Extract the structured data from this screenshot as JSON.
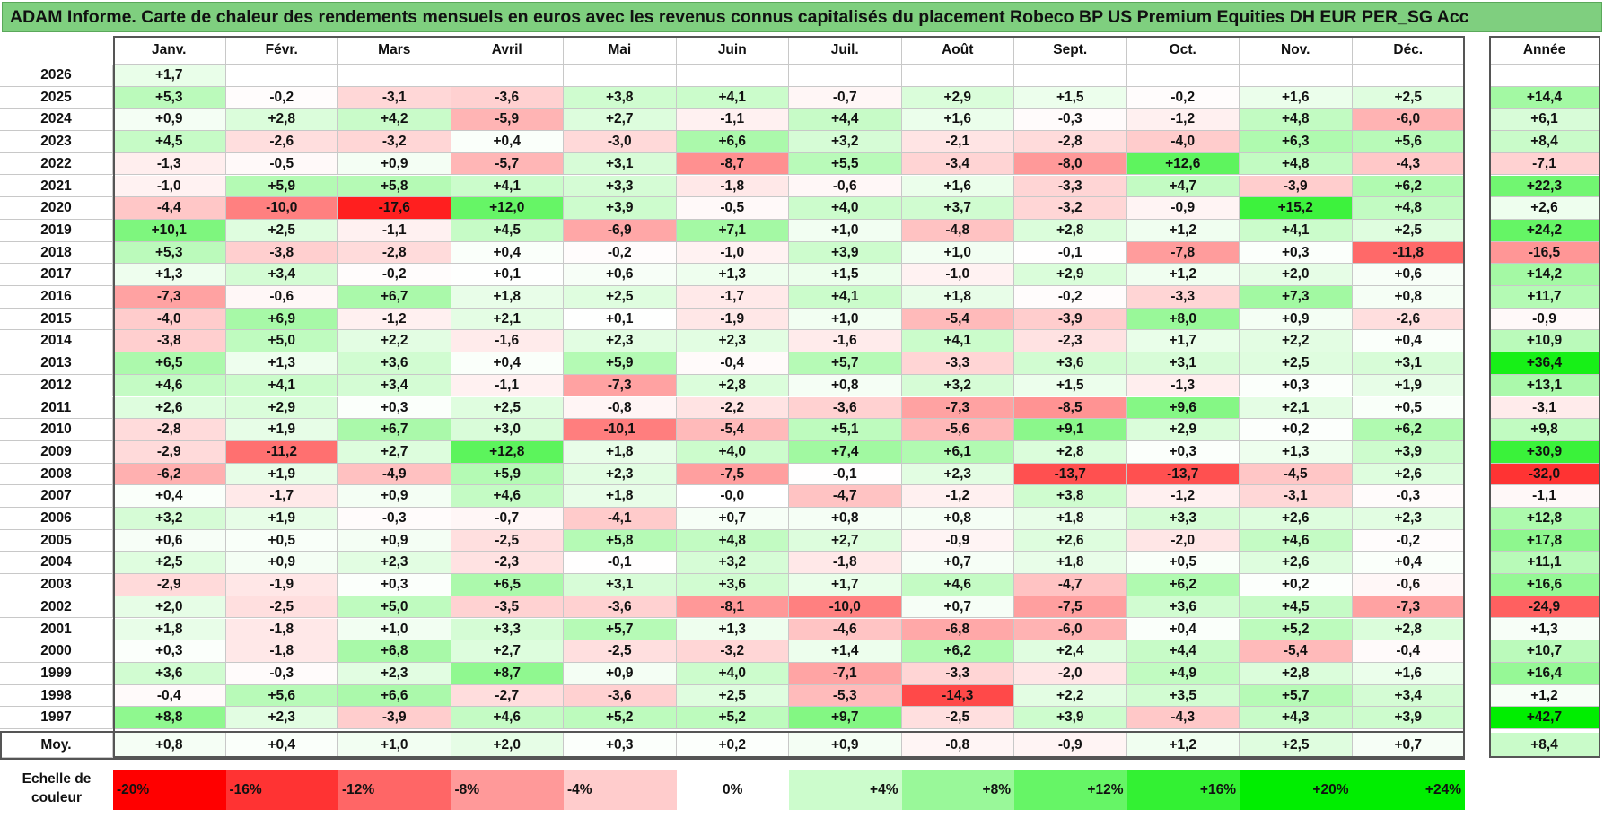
{
  "title": "ADAM Informe. Carte de chaleur des rendements mensuels en euros avec les revenus connus capitalisés du placement Robeco BP US Premium Equities DH EUR PER_SG Acc",
  "colors": {
    "title_bg": "#7fcf7f",
    "negative_max": "#ff0000",
    "neutral": "#ffffff",
    "positive_max": "#00ee00"
  },
  "chart_data": {
    "type": "heatmap",
    "months": [
      "Janv.",
      "Févr.",
      "Mars",
      "Avril",
      "Mai",
      "Juin",
      "Juil.",
      "Août",
      "Sept.",
      "Oct.",
      "Nov.",
      "Déc."
    ],
    "year_header": "Année",
    "years": [
      "2026",
      "2025",
      "2024",
      "2023",
      "2022",
      "2021",
      "2020",
      "2019",
      "2018",
      "2017",
      "2016",
      "2015",
      "2014",
      "2013",
      "2012",
      "2011",
      "2010",
      "2009",
      "2008",
      "2007",
      "2006",
      "2005",
      "2004",
      "2003",
      "2002",
      "2001",
      "2000",
      "1999",
      "1998",
      "1997"
    ],
    "monthly": [
      [
        "+1,7",
        "",
        "",
        "",
        "",
        "",
        "",
        "",
        "",
        "",
        "",
        ""
      ],
      [
        "+5,3",
        "-0,2",
        "-3,1",
        "-3,6",
        "+3,8",
        "+4,1",
        "-0,7",
        "+2,9",
        "+1,5",
        "-0,2",
        "+1,6",
        "+2,5"
      ],
      [
        "+0,9",
        "+2,8",
        "+4,2",
        "-5,9",
        "+2,7",
        "-1,1",
        "+4,4",
        "+1,6",
        "-0,3",
        "-1,2",
        "+4,8",
        "-6,0"
      ],
      [
        "+4,5",
        "-2,6",
        "-3,2",
        "+0,4",
        "-3,0",
        "+6,6",
        "+3,2",
        "-2,1",
        "-2,8",
        "-4,0",
        "+6,3",
        "+5,6"
      ],
      [
        "-1,3",
        "-0,5",
        "+0,9",
        "-5,7",
        "+3,1",
        "-8,7",
        "+5,5",
        "-3,4",
        "-8,0",
        "+12,6",
        "+4,8",
        "-4,3"
      ],
      [
        "-1,0",
        "+5,9",
        "+5,8",
        "+4,1",
        "+3,3",
        "-1,8",
        "-0,6",
        "+1,6",
        "-3,3",
        "+4,7",
        "-3,9",
        "+6,2"
      ],
      [
        "-4,4",
        "-10,0",
        "-17,6",
        "+12,0",
        "+3,9",
        "-0,5",
        "+4,0",
        "+3,7",
        "-3,2",
        "-0,9",
        "+15,2",
        "+4,8"
      ],
      [
        "+10,1",
        "+2,5",
        "-1,1",
        "+4,5",
        "-6,9",
        "+7,1",
        "+1,0",
        "-4,8",
        "+2,8",
        "+1,2",
        "+4,1",
        "+2,5"
      ],
      [
        "+5,3",
        "-3,8",
        "-2,8",
        "+0,4",
        "-0,2",
        "-1,0",
        "+3,9",
        "+1,0",
        "-0,1",
        "-7,8",
        "+0,3",
        "-11,8"
      ],
      [
        "+1,3",
        "+3,4",
        "-0,2",
        "+0,1",
        "+0,6",
        "+1,3",
        "+1,5",
        "-1,0",
        "+2,9",
        "+1,2",
        "+2,0",
        "+0,6"
      ],
      [
        "-7,3",
        "-0,6",
        "+6,7",
        "+1,8",
        "+2,5",
        "-1,7",
        "+4,1",
        "+1,8",
        "-0,2",
        "-3,3",
        "+7,3",
        "+0,8"
      ],
      [
        "-4,0",
        "+6,9",
        "-1,2",
        "+2,1",
        "+0,1",
        "-1,9",
        "+1,0",
        "-5,4",
        "-3,9",
        "+8,0",
        "+0,9",
        "-2,6"
      ],
      [
        "-3,8",
        "+5,0",
        "+2,2",
        "-1,6",
        "+2,3",
        "+2,3",
        "-1,6",
        "+4,1",
        "-2,3",
        "+1,7",
        "+2,2",
        "+0,4"
      ],
      [
        "+6,5",
        "+1,3",
        "+3,6",
        "+0,4",
        "+5,9",
        "-0,4",
        "+5,7",
        "-3,3",
        "+3,6",
        "+3,1",
        "+2,5",
        "+3,1"
      ],
      [
        "+4,6",
        "+4,1",
        "+3,4",
        "-1,1",
        "-7,3",
        "+2,8",
        "+0,8",
        "+3,2",
        "+1,5",
        "-1,3",
        "+0,3",
        "+1,9"
      ],
      [
        "+2,6",
        "+2,9",
        "+0,3",
        "+2,5",
        "-0,8",
        "-2,2",
        "-3,6",
        "-7,3",
        "-8,5",
        "+9,6",
        "+2,1",
        "+0,5"
      ],
      [
        "-2,8",
        "+1,9",
        "+6,7",
        "+3,0",
        "-10,1",
        "-5,4",
        "+5,1",
        "-5,6",
        "+9,1",
        "+2,9",
        "+0,2",
        "+6,2"
      ],
      [
        "-2,9",
        "-11,2",
        "+2,7",
        "+12,8",
        "+1,8",
        "+4,0",
        "+7,4",
        "+6,1",
        "+2,8",
        "+0,3",
        "+1,3",
        "+3,9"
      ],
      [
        "-6,2",
        "+1,9",
        "-4,9",
        "+5,9",
        "+2,3",
        "-7,5",
        "-0,1",
        "+2,3",
        "-13,7",
        "-13,7",
        "-4,5",
        "+2,6"
      ],
      [
        "+0,4",
        "-1,7",
        "+0,9",
        "+4,6",
        "+1,8",
        "-0,0",
        "-4,7",
        "-1,2",
        "+3,8",
        "-1,2",
        "-3,1",
        "-0,3"
      ],
      [
        "+3,2",
        "+1,9",
        "-0,3",
        "-0,7",
        "-4,1",
        "+0,7",
        "+0,8",
        "+0,8",
        "+1,8",
        "+3,3",
        "+2,6",
        "+2,3"
      ],
      [
        "+0,6",
        "+0,5",
        "+0,9",
        "-2,5",
        "+5,8",
        "+4,8",
        "+2,7",
        "-0,9",
        "+2,6",
        "-2,0",
        "+4,6",
        "-0,2"
      ],
      [
        "+2,5",
        "+0,9",
        "+2,3",
        "-2,3",
        "-0,1",
        "+3,2",
        "-1,8",
        "+0,7",
        "+1,8",
        "+0,5",
        "+2,6",
        "+0,4"
      ],
      [
        "-2,9",
        "-1,9",
        "+0,3",
        "+6,5",
        "+3,1",
        "+3,6",
        "+1,7",
        "+4,6",
        "-4,7",
        "+6,2",
        "+0,2",
        "-0,6"
      ],
      [
        "+2,0",
        "-2,5",
        "+5,0",
        "-3,5",
        "-3,6",
        "-8,1",
        "-10,0",
        "+0,7",
        "-7,5",
        "+3,6",
        "+4,5",
        "-7,3"
      ],
      [
        "+1,8",
        "-1,8",
        "+1,0",
        "+3,3",
        "+5,7",
        "+1,3",
        "-4,6",
        "-6,8",
        "-6,0",
        "+0,4",
        "+5,2",
        "+2,8"
      ],
      [
        "+0,3",
        "-1,8",
        "+6,8",
        "+2,7",
        "-2,5",
        "-3,2",
        "+1,4",
        "+6,2",
        "+2,4",
        "+4,4",
        "-5,4",
        "-0,4"
      ],
      [
        "+3,6",
        "-0,3",
        "+2,3",
        "+8,7",
        "+0,9",
        "+4,0",
        "-7,1",
        "-3,3",
        "-2,0",
        "+4,9",
        "+2,8",
        "+1,6"
      ],
      [
        "-0,4",
        "+5,6",
        "+6,6",
        "-2,7",
        "-3,6",
        "+2,5",
        "-5,3",
        "-14,3",
        "+2,2",
        "+3,5",
        "+5,7",
        "+3,4"
      ],
      [
        "+8,8",
        "+2,3",
        "-3,9",
        "+4,6",
        "+5,2",
        "+5,2",
        "+9,7",
        "-2,5",
        "+3,9",
        "-4,3",
        "+4,3",
        "+3,9"
      ]
    ],
    "annual": [
      "",
      "+14,4",
      "+6,1",
      "+8,4",
      "-7,1",
      "+22,3",
      "+2,6",
      "+24,2",
      "-16,5",
      "+14,2",
      "+11,7",
      "-0,9",
      "+10,9",
      "+36,4",
      "+13,1",
      "-3,1",
      "+9,8",
      "+30,9",
      "-32,0",
      "-1,1",
      "+12,8",
      "+17,8",
      "+11,1",
      "+16,6",
      "-24,9",
      "+1,3",
      "+10,7",
      "+16,4",
      "+1,2",
      "+42,7"
    ],
    "average_label": "Moy.",
    "average_monthly": [
      "+0,8",
      "+0,4",
      "+1,0",
      "+2,0",
      "+0,3",
      "+0,2",
      "+0,9",
      "-0,8",
      "-0,9",
      "+1,2",
      "+2,5",
      "+0,7"
    ],
    "average_annual": "+8,4",
    "scale_label": "Echelle de couleur",
    "scale": [
      {
        "label": "-20%",
        "value": -20
      },
      {
        "label": "-16%",
        "value": -16
      },
      {
        "label": "-12%",
        "value": -12
      },
      {
        "label": "-8%",
        "value": -8
      },
      {
        "label": "-4%",
        "value": -4
      },
      {
        "label": "0%",
        "value": 0
      },
      {
        "label": "+4%",
        "value": 4
      },
      {
        "label": "+8%",
        "value": 8
      },
      {
        "label": "+12%",
        "value": 12
      },
      {
        "label": "+16%",
        "value": 16
      },
      {
        "label": "+20%",
        "value": 20
      },
      {
        "label": "+24%",
        "value": 24
      }
    ]
  }
}
